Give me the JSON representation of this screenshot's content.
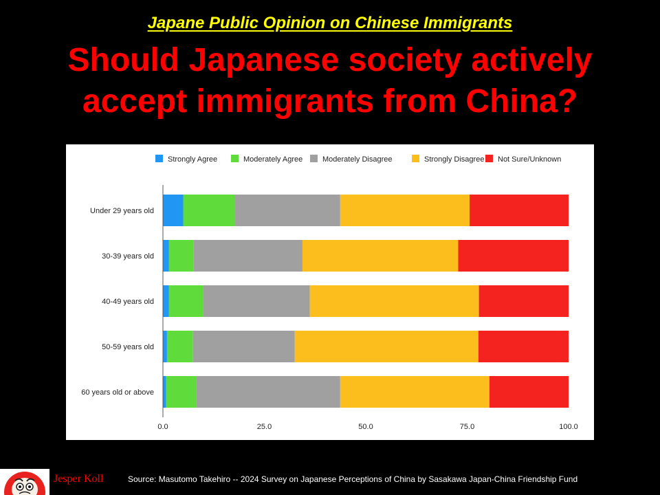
{
  "header": {
    "kicker": "Japane Public Opinion on Chinese Immigrants",
    "headline": "Should Japanese society actively accept immigrants from China?"
  },
  "footer": {
    "brand_name": "Jesper Koll",
    "source": "Source: Masutomo Takehiro  --  2024 Survey on Japanese Perceptions of China by Sasakawa Japan-China  Friendship Fund"
  },
  "colors": {
    "background": "#000000",
    "kicker": "#ffff00",
    "headline": "#ff0000",
    "strongly_agree": "#2196f3",
    "moderately_agree": "#5fdc3c",
    "moderately_disagree": "#a0a0a0",
    "strongly_disagree": "#fbbe1c",
    "not_sure": "#f4231f"
  },
  "chart_data": {
    "type": "bar",
    "orientation": "horizontal",
    "stacked": true,
    "categories": [
      "Under 29 years old",
      "30-39 years old",
      "40-49 years old",
      "50-59 years old",
      "60 years old or above"
    ],
    "series": [
      {
        "name": "Strongly Agree",
        "color": "#2196f3",
        "values": [
          5.0,
          1.5,
          1.5,
          1.0,
          0.8
        ]
      },
      {
        "name": "Moderately Agree",
        "color": "#5fdc3c",
        "values": [
          12.8,
          6.1,
          8.4,
          6.4,
          7.4
        ]
      },
      {
        "name": "Moderately Disagree",
        "color": "#a0a0a0",
        "values": [
          25.9,
          26.8,
          26.3,
          25.1,
          35.5
        ]
      },
      {
        "name": "Strongly Disagree",
        "color": "#fbbe1c",
        "values": [
          31.9,
          38.4,
          41.7,
          45.3,
          36.8
        ]
      },
      {
        "name": "Not Sure/Unknown",
        "color": "#f4231f",
        "values": [
          24.4,
          27.2,
          22.1,
          22.2,
          19.5
        ]
      }
    ],
    "x_ticks": [
      "0.0",
      "25.0",
      "50.0",
      "75.0",
      "100.0"
    ],
    "xlim": [
      0,
      100
    ],
    "legend_position": "top",
    "grid": false
  }
}
